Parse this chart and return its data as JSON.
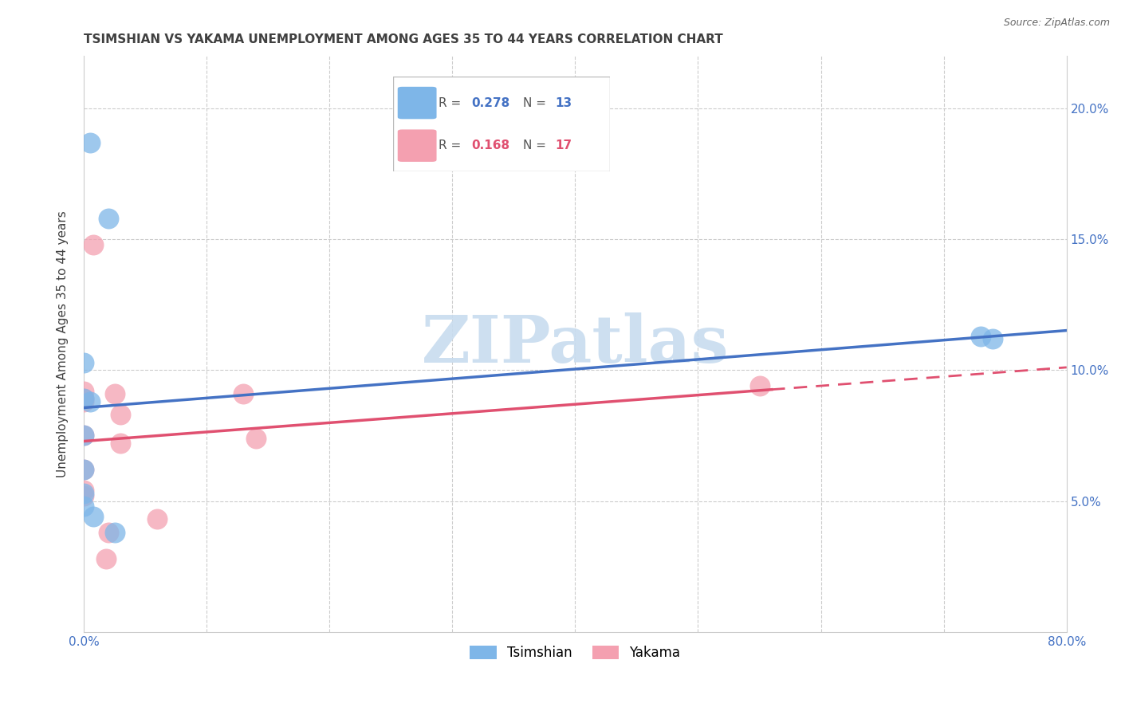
{
  "title": "TSIMSHIAN VS YAKAMA UNEMPLOYMENT AMONG AGES 35 TO 44 YEARS CORRELATION CHART",
  "source": "Source: ZipAtlas.com",
  "ylabel": "Unemployment Among Ages 35 to 44 years",
  "xlim": [
    0.0,
    0.8
  ],
  "ylim": [
    0.0,
    0.22
  ],
  "xticks": [
    0.0,
    0.1,
    0.2,
    0.3,
    0.4,
    0.5,
    0.6,
    0.7,
    0.8
  ],
  "yticks": [
    0.0,
    0.05,
    0.1,
    0.15,
    0.2
  ],
  "tsimshian_x": [
    0.005,
    0.02,
    0.0,
    0.0,
    0.005,
    0.0,
    0.0,
    0.0,
    0.0,
    0.008,
    0.73,
    0.74,
    0.025
  ],
  "tsimshian_y": [
    0.187,
    0.158,
    0.103,
    0.089,
    0.088,
    0.075,
    0.062,
    0.053,
    0.048,
    0.044,
    0.113,
    0.112,
    0.038
  ],
  "yakama_x": [
    0.008,
    0.025,
    0.0,
    0.0,
    0.0,
    0.0,
    0.0,
    0.0,
    0.03,
    0.03,
    0.0,
    0.13,
    0.14,
    0.55,
    0.06,
    0.02,
    0.018
  ],
  "yakama_y": [
    0.148,
    0.091,
    0.092,
    0.089,
    0.088,
    0.075,
    0.062,
    0.054,
    0.083,
    0.072,
    0.052,
    0.091,
    0.074,
    0.094,
    0.043,
    0.038,
    0.028
  ],
  "tsimshian_R": 0.278,
  "tsimshian_N": 13,
  "yakama_R": 0.168,
  "yakama_N": 17,
  "tsimshian_color": "#7EB6E8",
  "yakama_color": "#F4A0B0",
  "tsimshian_line_color": "#4472C4",
  "yakama_line_color": "#E05070",
  "watermark_text": "ZIPatlas",
  "watermark_color": "#C8DCEF",
  "background_color": "#FFFFFF",
  "grid_color": "#CCCCCC",
  "axis_color": "#CCCCCC",
  "tick_label_color": "#4472C4",
  "title_color": "#404040",
  "ylabel_color": "#404040",
  "legend_border_color": "#BBBBBB"
}
